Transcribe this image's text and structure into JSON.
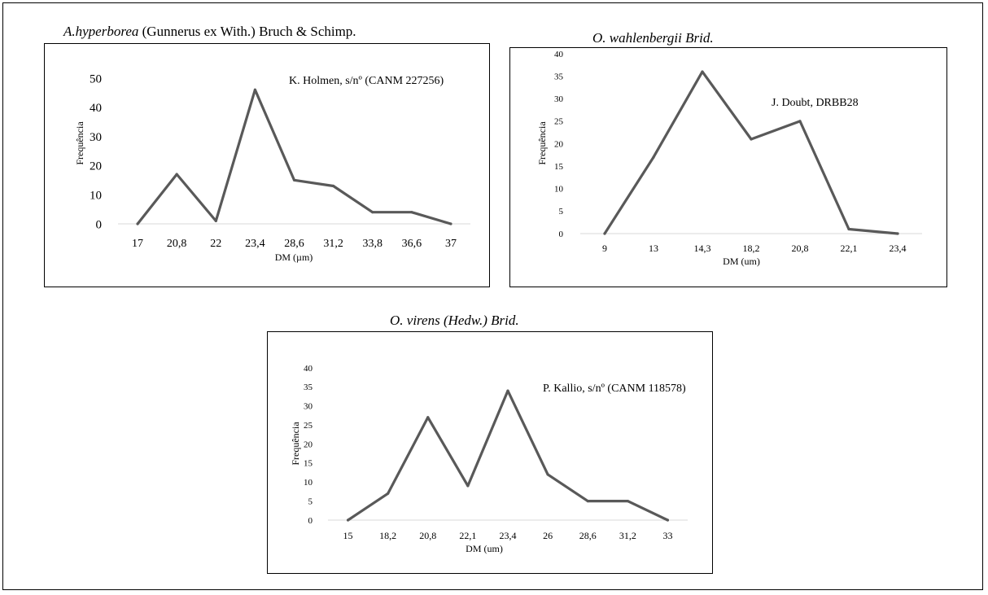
{
  "figures": [
    {
      "title_species": "A.hyperborea",
      "title_authority": " (Gunnerus ex With.) Bruch & Schimp.",
      "annotation": "K. Holmen, s/nº  (CANM 227256)"
    },
    {
      "title_species": "O.  wahlenbergii Brid.",
      "title_authority": "",
      "annotation": "J. Doubt, DRBB28"
    },
    {
      "title_species": "O. virens (Hedw.) Brid.",
      "title_authority": "",
      "annotation": "P. Kallio, s/nº  (CANM 118578)"
    }
  ],
  "chart_data": [
    {
      "type": "line",
      "title": "A.hyperborea (Gunnerus ex With.) Bruch & Schimp.",
      "xlabel": "DM (µm)",
      "ylabel": "Frequência",
      "categories": [
        "17",
        "20,8",
        "22",
        "23,4",
        "28,6",
        "31,2",
        "33,8",
        "36,6",
        "37"
      ],
      "values": [
        0,
        17,
        1,
        46,
        15,
        13,
        4,
        4,
        0
      ],
      "ylim": [
        0,
        50
      ],
      "yticks": [
        "0",
        "10",
        "20",
        "30",
        "40",
        "50"
      ],
      "grid": false,
      "line_color": "#595959"
    },
    {
      "type": "line",
      "title": "O.  wahlenbergii Brid.",
      "xlabel": "DM (um)",
      "ylabel": "Frequência",
      "categories": [
        "9",
        "13",
        "14,3",
        "18,2",
        "20,8",
        "22,1",
        "23,4"
      ],
      "values": [
        0,
        17,
        36,
        21,
        25,
        1,
        0
      ],
      "ylim": [
        0,
        40
      ],
      "yticks": [
        "0",
        "5",
        "10",
        "15",
        "20",
        "25",
        "30",
        "35",
        "40"
      ],
      "grid": false,
      "line_color": "#595959"
    },
    {
      "type": "line",
      "title": "O. virens (Hedw.) Brid.",
      "xlabel": "DM (um)",
      "ylabel": "Frequência",
      "categories": [
        "15",
        "18,2",
        "20,8",
        "22,1",
        "23,4",
        "26",
        "28,6",
        "31,2",
        "33"
      ],
      "values": [
        0,
        7,
        27,
        9,
        34,
        12,
        5,
        5,
        0
      ],
      "ylim": [
        0,
        40
      ],
      "yticks": [
        "0",
        "5",
        "10",
        "15",
        "20",
        "25",
        "30",
        "35",
        "40"
      ],
      "grid": false,
      "line_color": "#595959"
    }
  ]
}
